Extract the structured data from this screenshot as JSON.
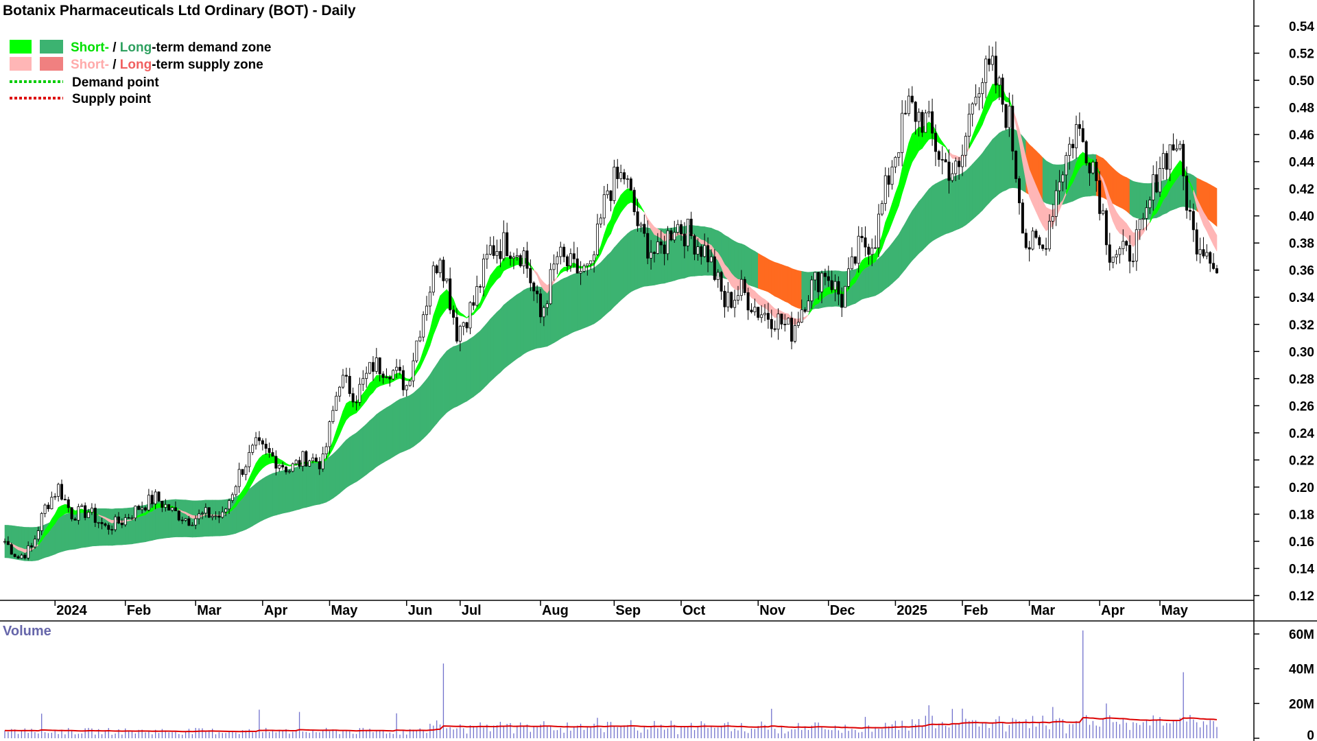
{
  "chart_data": {
    "type": "candlestick",
    "title": "Botanix Pharmaceuticals Ltd Ordinary (BOT) - Daily",
    "legend": {
      "placement": "top-left",
      "demand_zone": {
        "short_label": "Short-",
        "separator": " / ",
        "long_label": "Long",
        "suffix": "-term demand zone"
      },
      "supply_zone": {
        "short_label": "Short-",
        "separator": " / ",
        "long_label": "Long",
        "suffix": "-term supply zone"
      },
      "demand_point": "Demand point",
      "supply_point": "Supply point"
    },
    "colors": {
      "short_demand": "#00ff00",
      "long_demand": "#3cb371",
      "short_supply": "#ffb6b6",
      "long_supply": "#f08080",
      "zone_overlap": "#ff6a1f",
      "demand_point": "#00cc00",
      "supply_point": "#dd0000",
      "candle": "#000000",
      "volume_bar": "#7070cc",
      "volume_ma": "#dd0000"
    },
    "y_axis": {
      "min": 0.11,
      "max": 0.55,
      "ticks": [
        "0.54",
        "0.52",
        "0.50",
        "0.48",
        "0.46",
        "0.44",
        "0.42",
        "0.40",
        "0.38",
        "0.36",
        "0.34",
        "0.32",
        "0.30",
        "0.28",
        "0.26",
        "0.24",
        "0.22",
        "0.20",
        "0.18",
        "0.16",
        "0.14",
        "0.12"
      ]
    },
    "x_axis": {
      "labels": [
        {
          "text": "2024",
          "i": 15
        },
        {
          "text": "Feb",
          "i": 36
        },
        {
          "text": "Mar",
          "i": 57
        },
        {
          "text": "Apr",
          "i": 77
        },
        {
          "text": "May",
          "i": 97
        },
        {
          "text": "Jun",
          "i": 120
        },
        {
          "text": "Jul",
          "i": 136
        },
        {
          "text": "Aug",
          "i": 160
        },
        {
          "text": "Sep",
          "i": 182
        },
        {
          "text": "Oct",
          "i": 202
        },
        {
          "text": "Nov",
          "i": 225
        },
        {
          "text": "Dec",
          "i": 246
        },
        {
          "text": "2025",
          "i": 266
        },
        {
          "text": "Feb",
          "i": 286
        },
        {
          "text": "Mar",
          "i": 306
        },
        {
          "text": "Apr",
          "i": 327
        },
        {
          "text": "May",
          "i": 345
        }
      ],
      "n_periods": 363
    },
    "price_anchors": [
      [
        0,
        0.16
      ],
      [
        4,
        0.148
      ],
      [
        8,
        0.155
      ],
      [
        12,
        0.185
      ],
      [
        16,
        0.2
      ],
      [
        20,
        0.18
      ],
      [
        25,
        0.182
      ],
      [
        30,
        0.17
      ],
      [
        35,
        0.175
      ],
      [
        40,
        0.185
      ],
      [
        45,
        0.192
      ],
      [
        50,
        0.182
      ],
      [
        55,
        0.176
      ],
      [
        60,
        0.18
      ],
      [
        65,
        0.178
      ],
      [
        70,
        0.21
      ],
      [
        75,
        0.23
      ],
      [
        80,
        0.222
      ],
      [
        85,
        0.213
      ],
      [
        90,
        0.222
      ],
      [
        95,
        0.218
      ],
      [
        100,
        0.28
      ],
      [
        105,
        0.268
      ],
      [
        110,
        0.29
      ],
      [
        115,
        0.288
      ],
      [
        120,
        0.275
      ],
      [
        125,
        0.33
      ],
      [
        130,
        0.375
      ],
      [
        135,
        0.315
      ],
      [
        140,
        0.335
      ],
      [
        145,
        0.375
      ],
      [
        150,
        0.38
      ],
      [
        155,
        0.372
      ],
      [
        160,
        0.325
      ],
      [
        165,
        0.37
      ],
      [
        170,
        0.36
      ],
      [
        175,
        0.358
      ],
      [
        180,
        0.42
      ],
      [
        185,
        0.43
      ],
      [
        190,
        0.385
      ],
      [
        195,
        0.37
      ],
      [
        200,
        0.395
      ],
      [
        205,
        0.385
      ],
      [
        210,
        0.372
      ],
      [
        215,
        0.335
      ],
      [
        220,
        0.345
      ],
      [
        225,
        0.33
      ],
      [
        230,
        0.325
      ],
      [
        235,
        0.315
      ],
      [
        240,
        0.345
      ],
      [
        245,
        0.36
      ],
      [
        250,
        0.338
      ],
      [
        255,
        0.375
      ],
      [
        260,
        0.385
      ],
      [
        265,
        0.44
      ],
      [
        270,
        0.48
      ],
      [
        275,
        0.47
      ],
      [
        280,
        0.44
      ],
      [
        285,
        0.43
      ],
      [
        290,
        0.5
      ],
      [
        295,
        0.505
      ],
      [
        300,
        0.47
      ],
      [
        305,
        0.38
      ],
      [
        310,
        0.375
      ],
      [
        315,
        0.43
      ],
      [
        320,
        0.465
      ],
      [
        325,
        0.44
      ],
      [
        330,
        0.375
      ],
      [
        335,
        0.37
      ],
      [
        340,
        0.39
      ],
      [
        345,
        0.44
      ],
      [
        350,
        0.455
      ],
      [
        355,
        0.385
      ],
      [
        360,
        0.375
      ],
      [
        362,
        0.358
      ]
    ],
    "volume_axis": {
      "min": 0,
      "max": 65,
      "unit": "M",
      "ticks": [
        "60M",
        "40M",
        "20M",
        "0"
      ]
    },
    "volume_label": "Volume",
    "volume_spikes": [
      [
        131,
        43
      ],
      [
        322,
        62
      ],
      [
        352,
        38
      ],
      [
        329,
        20
      ],
      [
        313,
        18
      ],
      [
        276,
        19
      ]
    ]
  }
}
